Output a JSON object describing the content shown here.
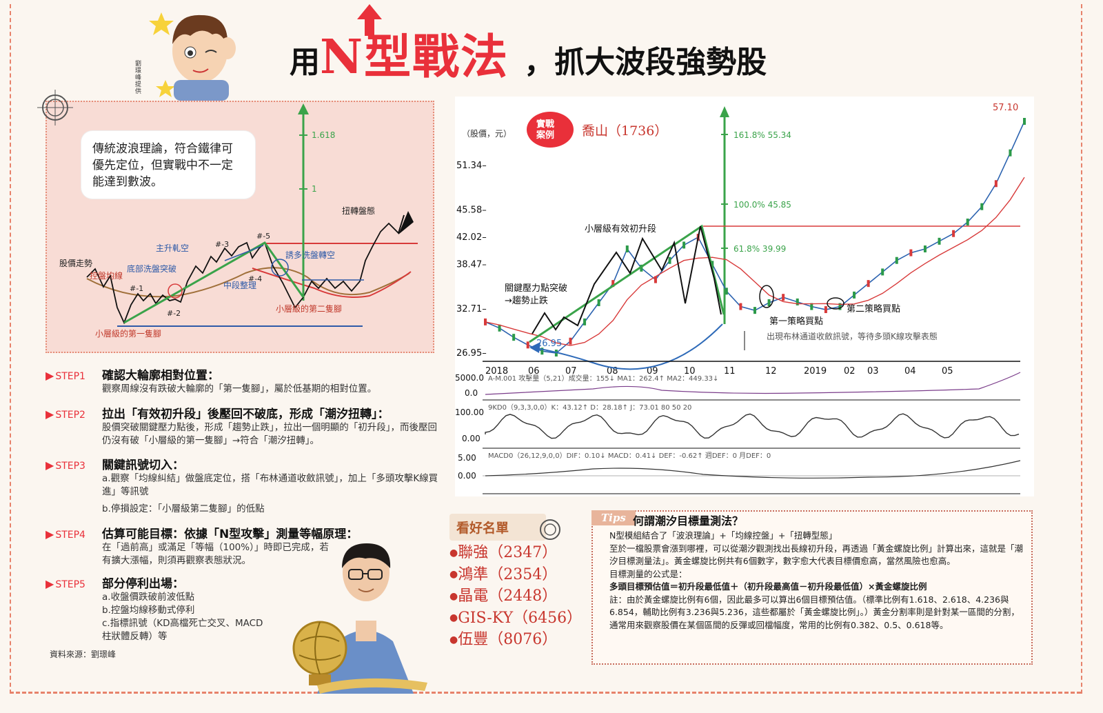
{
  "title": {
    "part1": "用",
    "part2": "N型戰法",
    "part3": "，抓大波段強勢股"
  },
  "credit": "劉璟峰提供",
  "diagram": {
    "bubble": "傳統波浪理論，符合鐵律可優先定位，但實戰中不一定能達到數波。",
    "fib_1618": "1.618",
    "fib_1": "1",
    "labels": {
      "twist": "扭轉盤態",
      "price": "股價走勢",
      "ma": "控盤均線",
      "bottom": "底部洗盤突破",
      "rise": "主升軋空",
      "n1": "#-1",
      "n2": "#-2",
      "n3": "#-3",
      "n4": "#-4",
      "n5": "#-5",
      "mid": "中段整理",
      "trap": "誘多洗盤轉空",
      "first_leg": "小層級的第一隻腳",
      "second_leg": "小層級的第二隻腳"
    }
  },
  "steps": [
    {
      "tag": "STEP1",
      "title": "確認大輪廓相對位置：",
      "body": [
        "觀察周線沒有跌破大輪廓的「第一隻腳」，屬於低基期的相對位置。"
      ]
    },
    {
      "tag": "STEP2",
      "title": "拉出「有效初升段」後壓回不破底，形成「潮汐扭轉」：",
      "body": [
        "股價突破關鍵壓力點後，形成「趨勢止跌」，拉出一個明顯的「初升段」，而後壓回仍沒有破「小層級的第一隻腳」→符合「潮汐扭轉」。"
      ]
    },
    {
      "tag": "STEP3",
      "title": "關鍵訊號切入：",
      "body": [
        "a.觀察「均線糾結」做盤底定位，搭「布林通道收斂訊號」，加上「多頭攻擊K線買進」等訊號",
        "b.停損設定：「小層級第二隻腳」的低點"
      ]
    },
    {
      "tag": "STEP4",
      "title": "估算可能目標：依據「N型攻擊」測量等幅原理：",
      "body": [
        "在「過前高」或滿足「等幅（100%）」時即已完成，若有擴大漲幅，則須再觀察表態狀況。"
      ]
    },
    {
      "tag": "STEP5",
      "title": "部分停利出場：",
      "body": [
        "a.收盤價跌破前波低點",
        "b.控盤均線移動式停利",
        "c.指標訊號（KD高檔死亡交叉、MACD柱狀體反轉）等"
      ]
    }
  ],
  "source": "資料來源：劉璟峰",
  "chart": {
    "unit": "（股價，元）",
    "badge": "實戰案例",
    "stock": "喬山（1736）",
    "max_label": "57.10",
    "fib_labels": [
      "161.8%  55.34",
      "100.0%  45.85",
      "61.8%  39.99"
    ],
    "annotations": {
      "initial": "小層級有效初升段",
      "breakout": "關鍵壓力點突破",
      "stop": "→趨勢止跌",
      "low": "26.95",
      "buy1": "第一策略買點",
      "buy2": "第二策略買點",
      "boll": "出現布林通道收斂訊號，等待多頭K線攻擊表態"
    },
    "vol_label": "5000.0",
    "vol_zero": "0.0",
    "vol_text": "A-M.001 攻擊量（5,21）成交量：155↓ MA1：262.4↑ MA2：449.33↓",
    "kd_100": "100.00",
    "kd_0": "0.00",
    "kd_text": "9KD0（9,3,3,0,0）K：43.12↑ D：28.18↑ J：73.01 80 50 20",
    "macd_5": "5.00",
    "macd_0": "0.00",
    "macd_text": "MACD0（26,12,9,0,0）DIF：0.10↓ MACD：0.41↓ DEF：-0.62↑ 週DEF：0 月DEF：0"
  },
  "chart_data": {
    "type": "line",
    "title": "喬山（1736）",
    "ylabel": "（股價，元）",
    "yticks": [
      "51.34",
      "45.58",
      "42.02",
      "38.47",
      "32.71",
      "26.95"
    ],
    "xticks": [
      "2018",
      "06",
      "07",
      "08",
      "09",
      "10",
      "11",
      "12",
      "2019",
      "02",
      "03",
      "04",
      "05"
    ],
    "ylim": [
      26.95,
      57.1
    ],
    "series": [
      {
        "values": [
          31.0,
          30.2,
          29.0,
          28.0,
          27.2,
          26.95,
          28.5,
          31.0,
          33.5,
          36.0,
          40.5,
          38.0,
          36.5,
          39.0,
          41.0,
          42.02,
          38.5,
          35.0,
          33.0,
          32.5,
          33.5,
          34.2,
          33.6,
          33.0,
          32.6,
          33.0,
          34.5,
          36.0,
          37.5,
          39.0,
          40.0,
          40.5,
          41.5,
          42.5,
          44.0,
          46.0,
          49.0,
          53.0,
          57.1
        ]
      }
    ]
  },
  "watchlist": {
    "title": "看好名單",
    "items": [
      "聯強（2347）",
      "鴻準（2354）",
      "晶電（2448）",
      "GIS-KY（6456）",
      "伍豐（8076）"
    ]
  },
  "tips": {
    "tag": "Tips",
    "title": "何謂潮汐目標量測法？",
    "p1": "N型模組結合了「波浪理論」+「均線控盤」+「扭轉型態」",
    "p2": "至於一檔股票會漲到哪裡，可以從潮汐觀測找出長線初升段，再透過「黃金螺旋比例」計算出來，這就是「潮汐目標測量法」。黃金螺旋比例共有6個數字，數字愈大代表目標價愈高，當然風險也愈高。",
    "p3": "目標測量的公式是：",
    "formula": "多頭目標預估值＝初升段最低值＋（初升段最高值－初升段最低值）×黃金螺旋比例",
    "note": "註：由於黃金螺旋比例有6個，因此最多可以算出6個目標預估值。（標準比例有1.618、2.618、4.236與6.854，輔助比例有3.236與5.236，這些都屬於「黃金螺旋比例」。）黃金分割率則是針對某一區間的分割，通常用來觀察股價在某個區間的反彈或回檔幅度，常用的比例有0.382、0.5、0.618等。"
  }
}
